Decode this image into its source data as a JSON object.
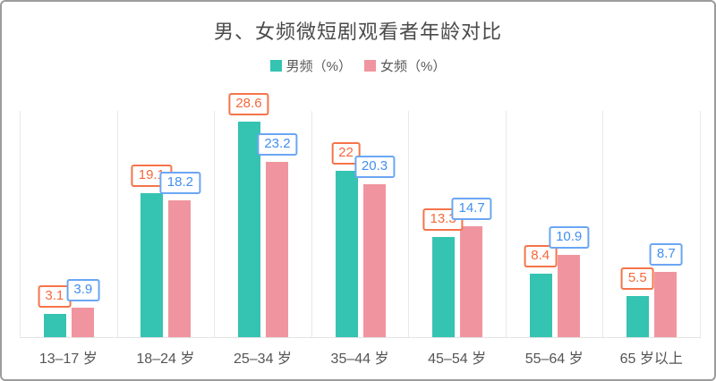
{
  "frame": {
    "border_color": "#9c9c9c",
    "background": "#ffffff"
  },
  "chart_data": {
    "type": "bar",
    "title": "男、女频微短剧观看者年龄对比",
    "categories": [
      "13–17 岁",
      "18–24 岁",
      "25–34 岁",
      "35–44 岁",
      "45–54 岁",
      "55–64 岁",
      "65 岁以上"
    ],
    "series": [
      {
        "name": "男频（%）",
        "color": "#35c3b2",
        "label_text_color": "#f5683a",
        "label_border_color": "#f5744a",
        "values": [
          3.1,
          19.1,
          28.6,
          22,
          13.3,
          8.4,
          5.5
        ]
      },
      {
        "name": "女频（%）",
        "color": "#f0959f",
        "label_text_color": "#418ff0",
        "label_border_color": "#6ba6f4",
        "values": [
          3.9,
          18.2,
          23.2,
          20.3,
          14.7,
          10.9,
          8.7
        ]
      }
    ],
    "xlabel": "",
    "ylabel": "",
    "ylim": [
      0,
      30
    ],
    "grid": "vertical-category-separators",
    "legend_position": "top",
    "value_labels": "boxed, shown above each bar"
  }
}
